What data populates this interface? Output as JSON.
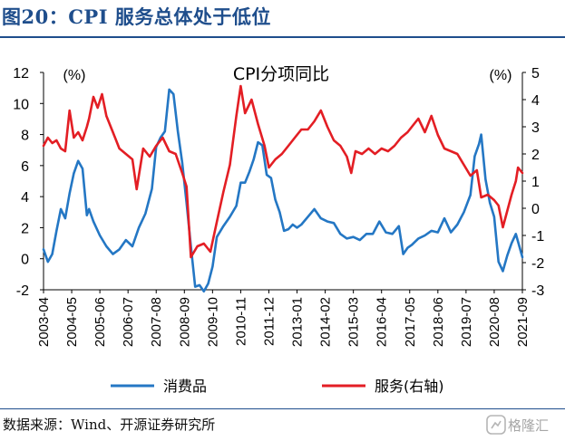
{
  "figure": {
    "title": "图20：CPI 服务总体处于低位",
    "source": "数据来源：Wind、开源证券研究所",
    "watermark": "格隆汇"
  },
  "chart_data": {
    "type": "line",
    "title": "CPI分项同比",
    "left_axis": {
      "unit": "(%)",
      "ylim": [
        -2,
        12
      ],
      "ticks": [
        -2,
        0,
        2,
        4,
        6,
        8,
        10,
        12
      ]
    },
    "right_axis": {
      "unit": "(%)",
      "ylim": [
        -3,
        5
      ],
      "ticks": [
        -3,
        -2,
        -1,
        0,
        1,
        2,
        3,
        4,
        5
      ]
    },
    "x_ticks": [
      "2003-04",
      "2004-05",
      "2005-06",
      "2006-07",
      "2007-08",
      "2008-09",
      "2009-10",
      "2010-11",
      "2011-12",
      "2013-01",
      "2014-02",
      "2015-03",
      "2016-04",
      "2017-05",
      "2018-06",
      "2019-07",
      "2020-08",
      "2021-09"
    ],
    "x_range": [
      "2003-04",
      "2021-09"
    ],
    "grid": false,
    "legend_position": "bottom",
    "series": [
      {
        "name": "消费品",
        "axis": "left",
        "color": "#2477c4",
        "points": [
          [
            "2003-04",
            0.6
          ],
          [
            "2003-06",
            -0.2
          ],
          [
            "2003-08",
            0.3
          ],
          [
            "2003-10",
            1.8
          ],
          [
            "2003-12",
            3.2
          ],
          [
            "2004-02",
            2.6
          ],
          [
            "2004-04",
            4.2
          ],
          [
            "2004-06",
            5.5
          ],
          [
            "2004-08",
            6.3
          ],
          [
            "2004-10",
            5.8
          ],
          [
            "2004-12",
            2.8
          ],
          [
            "2005-01",
            3.2
          ],
          [
            "2005-03",
            2.4
          ],
          [
            "2005-06",
            1.5
          ],
          [
            "2005-09",
            0.8
          ],
          [
            "2005-12",
            0.3
          ],
          [
            "2006-03",
            0.6
          ],
          [
            "2006-06",
            1.2
          ],
          [
            "2006-09",
            0.8
          ],
          [
            "2006-12",
            2.0
          ],
          [
            "2007-03",
            2.9
          ],
          [
            "2007-06",
            4.5
          ],
          [
            "2007-08",
            7.2
          ],
          [
            "2007-10",
            7.8
          ],
          [
            "2007-12",
            8.2
          ],
          [
            "2008-02",
            10.9
          ],
          [
            "2008-04",
            10.6
          ],
          [
            "2008-06",
            8.2
          ],
          [
            "2008-08",
            6.2
          ],
          [
            "2008-10",
            3.6
          ],
          [
            "2008-12",
            0.8
          ],
          [
            "2009-02",
            -1.8
          ],
          [
            "2009-04",
            -1.7
          ],
          [
            "2009-06",
            -2.1
          ],
          [
            "2009-08",
            -1.6
          ],
          [
            "2009-10",
            -0.5
          ],
          [
            "2009-12",
            1.4
          ],
          [
            "2010-03",
            2.1
          ],
          [
            "2010-06",
            2.7
          ],
          [
            "2010-09",
            3.4
          ],
          [
            "2010-11",
            4.9
          ],
          [
            "2011-01",
            4.9
          ],
          [
            "2011-03",
            5.6
          ],
          [
            "2011-05",
            6.4
          ],
          [
            "2011-07",
            7.5
          ],
          [
            "2011-09",
            7.3
          ],
          [
            "2011-11",
            5.4
          ],
          [
            "2012-01",
            5.2
          ],
          [
            "2012-03",
            3.8
          ],
          [
            "2012-05",
            3.0
          ],
          [
            "2012-07",
            1.8
          ],
          [
            "2012-09",
            1.9
          ],
          [
            "2012-11",
            2.2
          ],
          [
            "2013-01",
            2.0
          ],
          [
            "2013-03",
            2.2
          ],
          [
            "2013-06",
            2.7
          ],
          [
            "2013-09",
            3.2
          ],
          [
            "2013-12",
            2.6
          ],
          [
            "2014-03",
            2.4
          ],
          [
            "2014-06",
            2.3
          ],
          [
            "2014-09",
            1.6
          ],
          [
            "2014-12",
            1.3
          ],
          [
            "2015-03",
            1.4
          ],
          [
            "2015-06",
            1.2
          ],
          [
            "2015-09",
            1.6
          ],
          [
            "2015-12",
            1.6
          ],
          [
            "2016-03",
            2.4
          ],
          [
            "2016-06",
            1.7
          ],
          [
            "2016-09",
            1.6
          ],
          [
            "2016-12",
            2.1
          ],
          [
            "2017-02",
            0.3
          ],
          [
            "2017-04",
            0.7
          ],
          [
            "2017-06",
            0.9
          ],
          [
            "2017-09",
            1.3
          ],
          [
            "2017-12",
            1.5
          ],
          [
            "2018-03",
            1.8
          ],
          [
            "2018-06",
            1.7
          ],
          [
            "2018-09",
            2.6
          ],
          [
            "2018-12",
            1.7
          ],
          [
            "2019-03",
            2.2
          ],
          [
            "2019-06",
            3.0
          ],
          [
            "2019-09",
            4.1
          ],
          [
            "2019-11",
            6.6
          ],
          [
            "2020-01",
            7.4
          ],
          [
            "2020-02",
            8.0
          ],
          [
            "2020-04",
            5.1
          ],
          [
            "2020-06",
            3.6
          ],
          [
            "2020-08",
            2.7
          ],
          [
            "2020-10",
            -0.2
          ],
          [
            "2020-12",
            -0.8
          ],
          [
            "2021-02",
            0.2
          ],
          [
            "2021-04",
            1.0
          ],
          [
            "2021-06",
            1.6
          ],
          [
            "2021-08",
            0.6
          ],
          [
            "2021-09",
            0.1
          ]
        ]
      },
      {
        "name": "服务(右轴)",
        "axis": "right",
        "color": "#e31e24",
        "points": [
          [
            "2003-04",
            2.3
          ],
          [
            "2003-06",
            2.6
          ],
          [
            "2003-08",
            2.4
          ],
          [
            "2003-10",
            2.5
          ],
          [
            "2003-12",
            2.2
          ],
          [
            "2004-02",
            2.1
          ],
          [
            "2004-04",
            3.6
          ],
          [
            "2004-06",
            2.6
          ],
          [
            "2004-08",
            2.8
          ],
          [
            "2004-10",
            2.5
          ],
          [
            "2004-12",
            3.0
          ],
          [
            "2005-01",
            3.3
          ],
          [
            "2005-03",
            4.1
          ],
          [
            "2005-05",
            3.7
          ],
          [
            "2005-07",
            4.2
          ],
          [
            "2005-09",
            3.4
          ],
          [
            "2005-12",
            2.8
          ],
          [
            "2006-03",
            2.2
          ],
          [
            "2006-06",
            2.0
          ],
          [
            "2006-09",
            1.8
          ],
          [
            "2006-11",
            0.7
          ],
          [
            "2007-02",
            2.2
          ],
          [
            "2007-05",
            1.9
          ],
          [
            "2007-08",
            2.3
          ],
          [
            "2007-11",
            2.6
          ],
          [
            "2008-02",
            2.1
          ],
          [
            "2008-05",
            2.0
          ],
          [
            "2008-08",
            1.3
          ],
          [
            "2008-10",
            0.8
          ],
          [
            "2008-12",
            -1.8
          ],
          [
            "2009-03",
            -1.4
          ],
          [
            "2009-06",
            -1.3
          ],
          [
            "2009-09",
            -1.6
          ],
          [
            "2009-12",
            -0.5
          ],
          [
            "2010-03",
            0.6
          ],
          [
            "2010-06",
            1.6
          ],
          [
            "2010-09",
            3.4
          ],
          [
            "2010-11",
            4.5
          ],
          [
            "2011-01",
            3.5
          ],
          [
            "2011-04",
            4.0
          ],
          [
            "2011-07",
            3.1
          ],
          [
            "2011-10",
            2.3
          ],
          [
            "2011-12",
            1.5
          ],
          [
            "2012-03",
            1.8
          ],
          [
            "2012-06",
            2.0
          ],
          [
            "2012-09",
            2.3
          ],
          [
            "2012-12",
            2.6
          ],
          [
            "2013-03",
            2.9
          ],
          [
            "2013-06",
            2.9
          ],
          [
            "2013-09",
            3.2
          ],
          [
            "2013-12",
            3.6
          ],
          [
            "2014-03",
            3.0
          ],
          [
            "2014-06",
            2.5
          ],
          [
            "2014-09",
            2.3
          ],
          [
            "2014-12",
            1.9
          ],
          [
            "2015-02",
            1.3
          ],
          [
            "2015-04",
            2.1
          ],
          [
            "2015-07",
            2.0
          ],
          [
            "2015-10",
            2.2
          ],
          [
            "2016-01",
            2.0
          ],
          [
            "2016-04",
            2.2
          ],
          [
            "2016-07",
            2.1
          ],
          [
            "2016-10",
            2.3
          ],
          [
            "2017-01",
            2.6
          ],
          [
            "2017-04",
            2.8
          ],
          [
            "2017-07",
            3.1
          ],
          [
            "2017-09",
            3.3
          ],
          [
            "2017-12",
            2.8
          ],
          [
            "2018-03",
            3.4
          ],
          [
            "2018-06",
            2.7
          ],
          [
            "2018-09",
            2.2
          ],
          [
            "2018-12",
            2.1
          ],
          [
            "2019-03",
            2.0
          ],
          [
            "2019-06",
            1.6
          ],
          [
            "2019-09",
            1.2
          ],
          [
            "2019-12",
            1.4
          ],
          [
            "2020-02",
            0.4
          ],
          [
            "2020-05",
            0.5
          ],
          [
            "2020-08",
            0.3
          ],
          [
            "2020-10",
            0.1
          ],
          [
            "2020-12",
            -0.7
          ],
          [
            "2021-02",
            -0.1
          ],
          [
            "2021-04",
            0.5
          ],
          [
            "2021-06",
            1.0
          ],
          [
            "2021-07",
            1.5
          ],
          [
            "2021-09",
            1.3
          ]
        ]
      }
    ]
  }
}
